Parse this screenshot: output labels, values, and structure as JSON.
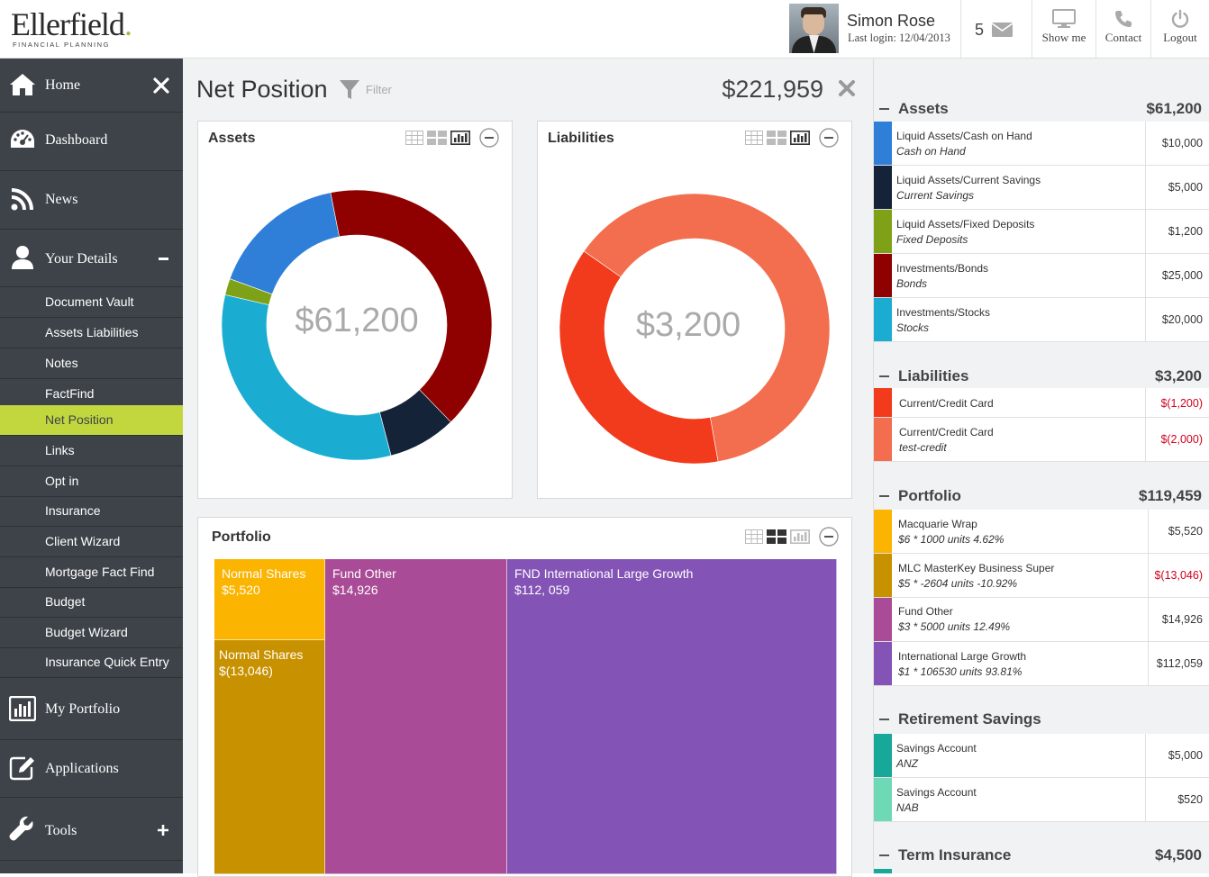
{
  "header": {
    "brand": "Ellerfield",
    "brand_sub": "FINANCIAL PLANNING",
    "user_name": "Simon Rose",
    "last_login": "Last login: 12/04/2013",
    "message_count": "5",
    "buttons": [
      {
        "label": "Show me",
        "icon": "monitor-icon"
      },
      {
        "label": "Contact",
        "icon": "phone-icon"
      },
      {
        "label": "Logout",
        "icon": "power-icon"
      }
    ]
  },
  "sidebar": {
    "home": "Home",
    "dashboard": "Dashboard",
    "news": "News",
    "your_details": "Your Details",
    "sub_items": [
      "Document Vault",
      "Assets Liabilities",
      "Notes",
      "FactFind",
      "Net Position",
      "Links",
      "Opt in",
      "Insurance",
      "Client Wizard",
      "Mortgage Fact Find",
      "Budget",
      "Budget Wizard",
      "Insurance Quick Entry"
    ],
    "active_item": "Net Position",
    "my_portfolio": "My Portfolio",
    "applications": "Applications",
    "tools": "Tools"
  },
  "main": {
    "title": "Net Position",
    "filter_label": "Filter",
    "net_total": "$221,959",
    "assets_panel": {
      "title": "Assets",
      "center_value": "$61,200"
    },
    "liabilities_panel": {
      "title": "Liabilities",
      "center_value": "$3,200"
    },
    "portfolio_panel": {
      "title": "Portfolio",
      "cells": [
        {
          "name": "Normal Shares",
          "value": "$5,520",
          "color": "#fbb400"
        },
        {
          "name": "Normal Shares",
          "value": "$(13,046)",
          "color": "#c89100"
        },
        {
          "name": "Fund Other",
          "value": "$14,926",
          "color": "#a94b96"
        },
        {
          "name": "FND International Large Growth",
          "value": "$112, 059",
          "color": "#8353b5"
        }
      ]
    }
  },
  "chart_data": [
    {
      "type": "pie",
      "title": "Assets",
      "center_label": "$61,200",
      "slices": [
        {
          "label": "Liquid Assets/Cash on Hand",
          "value": 10000,
          "color": "#2f7fd8"
        },
        {
          "label": "Liquid Assets/Current Savings",
          "value": 5000,
          "color": "#142338"
        },
        {
          "label": "Liquid Assets/Fixed Deposits",
          "value": 1200,
          "color": "#7ea117"
        },
        {
          "label": "Investments/Bonds",
          "value": 25000,
          "color": "#8f0000"
        },
        {
          "label": "Investments/Stocks",
          "value": 20000,
          "color": "#1badd1"
        }
      ]
    },
    {
      "type": "pie",
      "title": "Liabilities",
      "center_label": "$3,200",
      "slices": [
        {
          "label": "Current/Credit Card",
          "value": 1200,
          "color": "#f23a1c"
        },
        {
          "label": "Current/Credit Card test-credit",
          "value": 2000,
          "color": "#f26e4e"
        }
      ]
    }
  ],
  "right_panel": {
    "sections": [
      {
        "title": "Assets",
        "total": "$61,200",
        "rows": [
          {
            "name": "Liquid Assets/Cash on Hand",
            "sub": "Cash on Hand",
            "value": "$10,000",
            "color": "#2f7fd8",
            "negative": false
          },
          {
            "name": "Liquid Assets/Current Savings",
            "sub": "Current Savings",
            "value": "$5,000",
            "color": "#142338",
            "negative": false
          },
          {
            "name": "Liquid Assets/Fixed Deposits",
            "sub": "Fixed Deposits",
            "value": "$1,200",
            "color": "#7ea117",
            "negative": false
          },
          {
            "name": "Investments/Bonds",
            "sub": "Bonds",
            "value": "$25,000",
            "color": "#8f0000",
            "negative": false
          },
          {
            "name": "Investments/Stocks",
            "sub": "Stocks",
            "value": "$20,000",
            "color": "#1badd1",
            "negative": false
          }
        ]
      },
      {
        "title": "Liabilities",
        "total": "$3,200",
        "rows": [
          {
            "name": "Current/Credit Card",
            "sub": "",
            "value": "$(1,200)",
            "color": "#f23a1c",
            "negative": true
          },
          {
            "name": "Current/Credit Card",
            "sub": "test-credit",
            "value": "$(2,000)",
            "color": "#f26e4e",
            "negative": true
          }
        ]
      },
      {
        "title": "Portfolio",
        "total": "$119,459",
        "rows": [
          {
            "name": "Macquarie Wrap",
            "sub": "$6 * 1000 units 4.62%",
            "value": "$5,520",
            "color": "#fbb400",
            "negative": false
          },
          {
            "name": "MLC MasterKey Business Super",
            "sub": "$5 * -2604 units -10.92%",
            "value": "$(13,046)",
            "color": "#c89100",
            "negative": true
          },
          {
            "name": "Fund Other",
            "sub": "$3 * 5000 units 12.49%",
            "value": "$14,926",
            "color": "#a94b96",
            "negative": false
          },
          {
            "name": "International Large Growth",
            "sub": "$1 * 106530 units 93.81%",
            "value": "$112,059",
            "color": "#8353b5",
            "negative": false
          }
        ]
      },
      {
        "title": "Retirement Savings",
        "total": "",
        "rows": [
          {
            "name": "Savings Account",
            "sub": "ANZ",
            "value": "$5,000",
            "color": "#17a89a",
            "negative": false
          },
          {
            "name": "Savings Account",
            "sub": "NAB",
            "value": "$520",
            "color": "#6fd8b4",
            "negative": false
          }
        ]
      },
      {
        "title": "Term Insurance",
        "total": "$4,500",
        "rows": []
      }
    ]
  }
}
